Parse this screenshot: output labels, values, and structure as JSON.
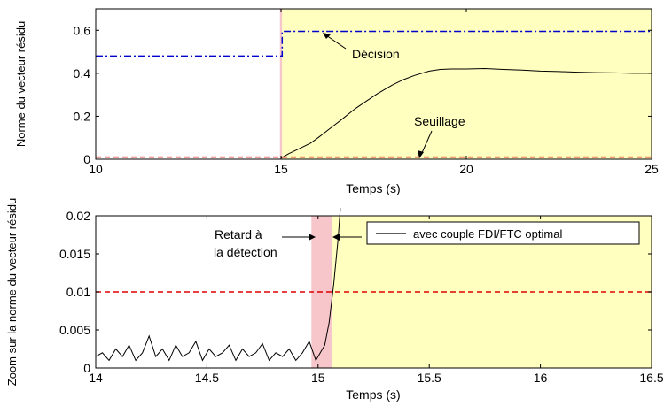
{
  "chart_data": [
    {
      "type": "line",
      "xlabel": "Temps (s)",
      "ylabel": "Norme du vecteur résidu",
      "xlim": [
        10,
        25
      ],
      "ylim": [
        0,
        0.7
      ],
      "xticks": [
        "10",
        "15",
        "20",
        "25"
      ],
      "yticks": [
        "0",
        "0.2",
        "0.4",
        "0.6"
      ],
      "grid": false,
      "shaded_regions": [
        {
          "x0": 14.97,
          "x1": 15.03,
          "color": "#f6c6cb"
        },
        {
          "x0": 15.03,
          "x1": 25,
          "color": "#ffffc0"
        }
      ],
      "series": [
        {
          "style": "dash-dot",
          "color": "#0000cc",
          "x": [
            10,
            15.03,
            15.03,
            25
          ],
          "y": [
            0.48,
            0.48,
            0.595,
            0.595
          ]
        },
        {
          "style": "solid",
          "color": "#000000",
          "x": [
            15,
            15.2,
            15.5,
            15.8,
            16.0,
            16.3,
            16.6,
            17.0,
            17.3,
            17.6,
            18.0,
            18.3,
            18.6,
            19.0,
            19.3,
            19.6,
            20.0,
            20.5,
            21.0,
            21.5,
            22.0,
            22.5,
            23.0,
            23.5,
            24.0,
            24.5,
            25.0
          ],
          "y": [
            0.005,
            0.025,
            0.05,
            0.075,
            0.1,
            0.14,
            0.18,
            0.235,
            0.27,
            0.305,
            0.345,
            0.37,
            0.39,
            0.41,
            0.418,
            0.42,
            0.42,
            0.422,
            0.418,
            0.415,
            0.41,
            0.408,
            0.405,
            0.403,
            0.402,
            0.4,
            0.4
          ]
        },
        {
          "style": "dashed",
          "color": "#dd0000",
          "x": [
            10,
            25
          ],
          "y": [
            0.01,
            0.01
          ]
        }
      ],
      "annotations": [
        {
          "text": "Décision",
          "x": 19.0,
          "y": 0.5
        },
        {
          "text": "Seuillage",
          "x": 19.0,
          "y": 0.11
        }
      ]
    },
    {
      "type": "line",
      "xlabel": "Temps (s)",
      "ylabel": "Zoom sur la norme du vecteur résidu",
      "xlim": [
        14,
        16.5
      ],
      "ylim": [
        0,
        0.02
      ],
      "xticks": [
        "14",
        "14.5",
        "15",
        "15.5",
        "16",
        "16.5"
      ],
      "yticks": [
        "0",
        "0.005",
        "0.01",
        "0.015",
        "0.02"
      ],
      "grid": false,
      "legend": {
        "position": "top-right",
        "entries": [
          "avec couple FDI/FTC optimal"
        ]
      },
      "shaded_regions": [
        {
          "x0": 14.97,
          "x1": 15.065,
          "color": "#f6c6cb"
        },
        {
          "x0": 15.065,
          "x1": 16.5,
          "color": "#ffffc0"
        }
      ],
      "series": [
        {
          "style": "solid",
          "color": "#000000",
          "name": "avec couple FDI/FTC optimal",
          "x": [
            14,
            14.03,
            14.06,
            14.09,
            14.12,
            14.15,
            14.18,
            14.21,
            14.24,
            14.27,
            14.3,
            14.33,
            14.36,
            14.39,
            14.42,
            14.45,
            14.48,
            14.51,
            14.54,
            14.57,
            14.6,
            14.63,
            14.66,
            14.69,
            14.72,
            14.75,
            14.78,
            14.81,
            14.84,
            14.87,
            14.9,
            14.93,
            14.96,
            14.99,
            15.01,
            15.03,
            15.05,
            15.07,
            15.09,
            15.1
          ],
          "y": [
            0.0015,
            0.002,
            0.001,
            0.0025,
            0.0015,
            0.003,
            0.001,
            0.002,
            0.0042,
            0.0015,
            0.0025,
            0.001,
            0.003,
            0.0015,
            0.002,
            0.0035,
            0.001,
            0.0025,
            0.0015,
            0.002,
            0.003,
            0.001,
            0.0025,
            0.0015,
            0.002,
            0.0032,
            0.001,
            0.002,
            0.0015,
            0.0025,
            0.001,
            0.002,
            0.0035,
            0.001,
            0.002,
            0.003,
            0.006,
            0.011,
            0.017,
            0.021
          ]
        },
        {
          "style": "dashed",
          "color": "#dd0000",
          "x": [
            14,
            16.5
          ],
          "y": [
            0.01,
            0.01
          ]
        }
      ],
      "annotations": [
        {
          "text": "Retard à",
          "x": 14.75,
          "y": 0.0183
        },
        {
          "text": "la détection",
          "x": 14.75,
          "y": 0.0159
        }
      ]
    }
  ]
}
